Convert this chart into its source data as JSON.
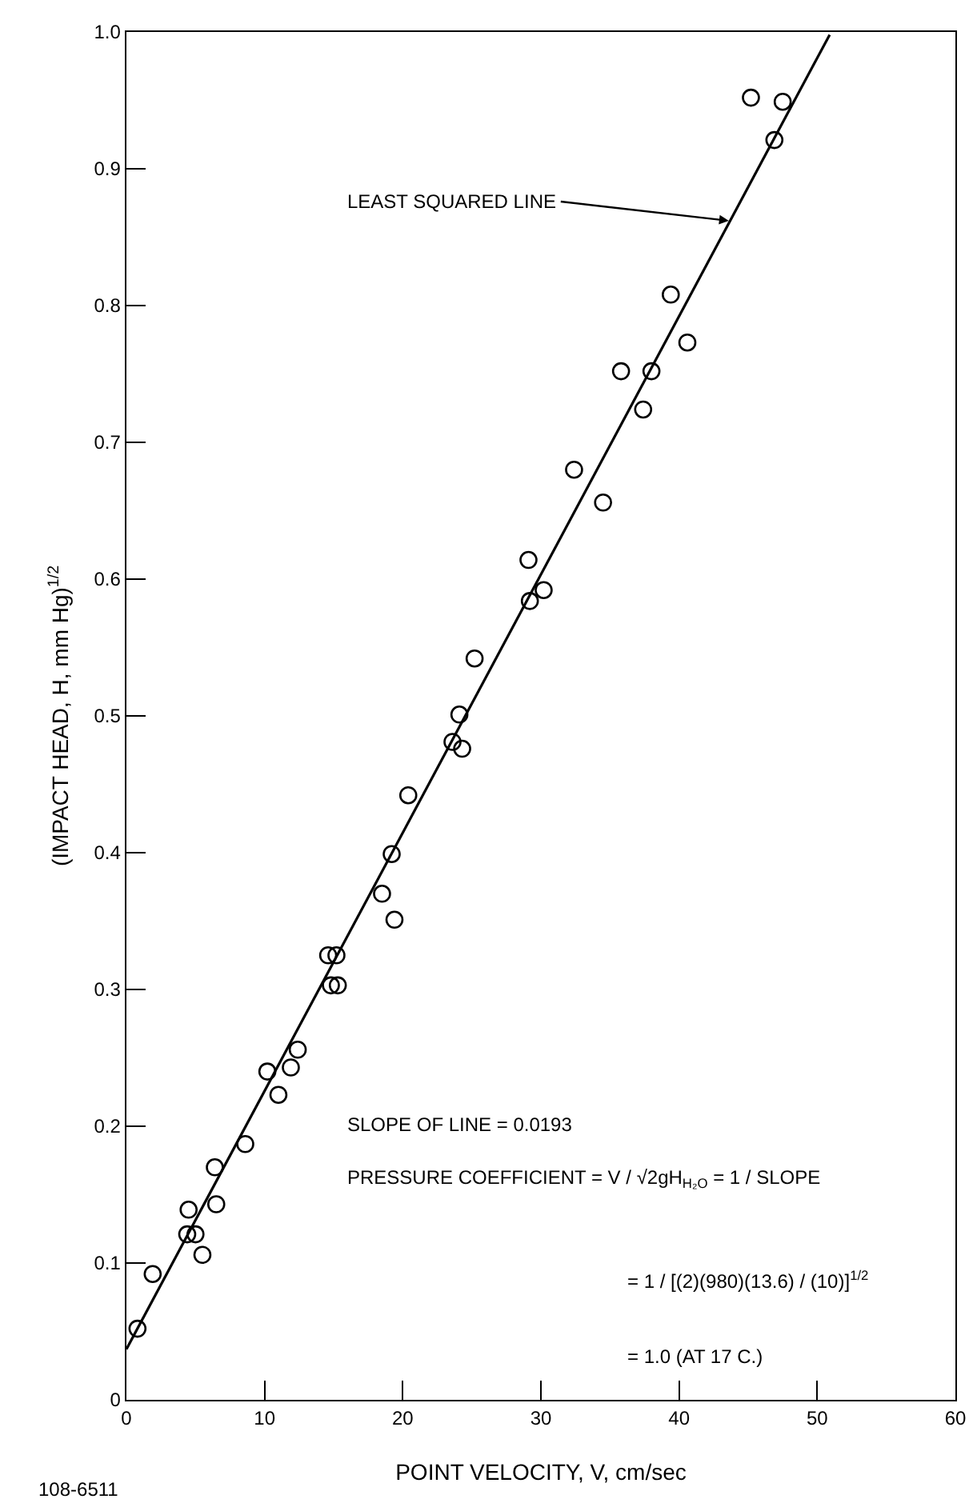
{
  "chart_data": {
    "type": "scatter",
    "xlabel": "POINT VELOCITY, V, cm/sec",
    "ylabel": "(IMPACT HEAD, H, mm Hg)$^{1/2}$",
    "xlim": [
      0,
      60
    ],
    "xticks": [
      0,
      10,
      20,
      30,
      40,
      50,
      60
    ],
    "ylim": [
      0,
      1
    ],
    "yticks": [
      0,
      0.1,
      0.2,
      0.3,
      0.4,
      0.5,
      0.6,
      0.7,
      0.8,
      0.9,
      {
        "value": 1,
        "label": "1.0"
      }
    ],
    "grid": false,
    "legend": false,
    "line_style": "solid",
    "series": [
      {
        "marker": "circle",
        "color": "#000000",
        "x": [
          0.8,
          1.9,
          4.5,
          4.4,
          5.0,
          5.5,
          6.4,
          6.5,
          8.6,
          10.2,
          11.0,
          11.9,
          12.4,
          14.8,
          15.3,
          14.6,
          15.2,
          19.4,
          18.5,
          19.2,
          20.4,
          23.6,
          24.3,
          24.1,
          25.2,
          29.1,
          29.2,
          30.2,
          32.4,
          34.5,
          35.8,
          38.0,
          37.4,
          40.6,
          39.4,
          45.2,
          47.5,
          46.9
        ],
        "values": [
          0.052,
          0.092,
          0.139,
          0.121,
          0.121,
          0.106,
          0.17,
          0.143,
          0.187,
          0.24,
          0.223,
          0.243,
          0.256,
          0.303,
          0.303,
          0.325,
          0.325,
          0.351,
          0.37,
          0.399,
          0.442,
          0.481,
          0.476,
          0.501,
          0.542,
          0.614,
          0.584,
          0.592,
          0.68,
          0.656,
          0.752,
          0.752,
          0.724,
          0.773,
          0.808,
          0.952,
          0.949,
          0.921
        ]
      },
      {
        "type": "line",
        "color": "#000000",
        "x": [
          0,
          50.9
        ],
        "values": [
          0.037,
          0.998
        ]
      }
    ],
    "annotations": [
      {
        "text": "LEAST SQUARED LINE",
        "x": 43.6,
        "y": 0.862
      },
      "SLOPE OF LINE = 0.0193",
      "PRESSURE COEFFICIENT = V / √2gH$_{H₂O}$ = 1 / SLOPE",
      "= 1 / [(2)(980)(13.6) / (10)]$^{1/2}$",
      "= 1.0 (AT 17 C.)",
      "108-6511"
    ]
  }
}
